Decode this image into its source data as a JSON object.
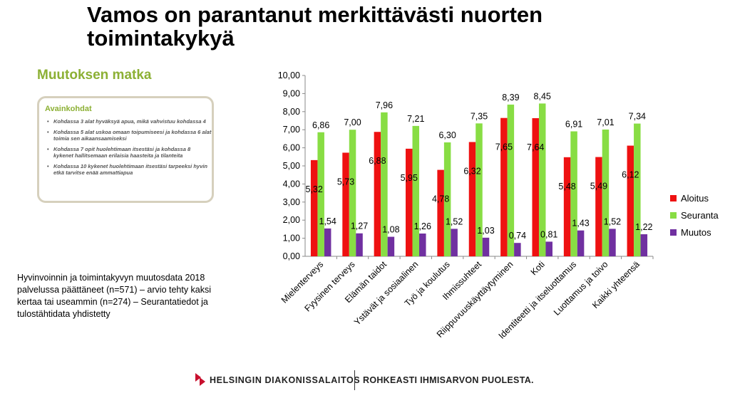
{
  "slide": {
    "title": "Vamos on parantanut merkittävästi nuorten toimintakykyä",
    "journey_title": "Muutoksen matka",
    "key_box": {
      "title": "Avainkohdat",
      "items": [
        "Kohdassa 3 alat hyväksyä apua, mikä vahvistuu kohdassa 4",
        "Kohdassa 5 alat uskoa omaan toipumiseesi ja kohdassa 6 alat toimia sen aikaansaamiseksi",
        "Kohdassa 7 opit huolehtimaan itsestäsi ja kohdassa 8 kykenet hallitsemaan erilaisia haasteita ja tilanteita",
        "Kohdassa 10 kykenet huolehtimaan itsestäsi tarpeeksi hyvin etkä tarvitse enää ammattiapua"
      ]
    },
    "source_text": "Hyvinvoinnin ja toimintakyvyn muutosdata 2018 palvelussa päättäneet (n=571) – arvio tehty kaksi kertaa tai useammin (n=274) – Seurantatiedot ja tulostähtidata yhdistetty",
    "footer": {
      "org": "HELSINGIN DIAKONISSALAITOS",
      "slogan": "ROHKEASTI IHMISARVON PUOLESTA."
    },
    "colors": {
      "aloitus": "#ee1111",
      "seuranta": "#88dd44",
      "muutos": "#7030a0",
      "accent": "#8cb034",
      "logo": "#c8102e"
    }
  },
  "chart_data": {
    "type": "bar",
    "title": "",
    "xlabel": "",
    "ylabel": "",
    "ylim": [
      0,
      10
    ],
    "yticks": [
      "0,00",
      "1,00",
      "2,00",
      "3,00",
      "4,00",
      "5,00",
      "6,00",
      "7,00",
      "8,00",
      "9,00",
      "10,00"
    ],
    "categories": [
      "Mielenterveys",
      "Fyysinen terveys",
      "Elämän taidot",
      "Ystävät ja sosiaalinen",
      "Työ ja koulutus",
      "Ihmissuhteet",
      "Riippuvuuskäyttäytyminen",
      "Koti",
      "Identiteetti ja itseluottamus",
      "Luottamus ja toivo",
      "Kaikki yhteensä"
    ],
    "series": [
      {
        "name": "Aloitus",
        "color": "#ee1111",
        "values": [
          5.32,
          5.73,
          6.88,
          5.95,
          4.78,
          6.32,
          7.65,
          7.64,
          5.48,
          5.49,
          6.12
        ],
        "labels": [
          "5,32",
          "5,73",
          "6,88",
          "5,95",
          "4,78",
          "6,32",
          "7,65",
          "7,64",
          "5,48",
          "5,49",
          "6,12"
        ]
      },
      {
        "name": "Seuranta",
        "color": "#88dd44",
        "values": [
          6.86,
          7.0,
          7.96,
          7.21,
          6.3,
          7.35,
          8.39,
          8.45,
          6.91,
          7.01,
          7.34
        ],
        "labels": [
          "6,86",
          "7,00",
          "7,96",
          "7,21",
          "6,30",
          "7,35",
          "8,39",
          "8,45",
          "6,91",
          "7,01",
          "7,34"
        ]
      },
      {
        "name": "Muutos",
        "color": "#7030a0",
        "values": [
          1.54,
          1.27,
          1.08,
          1.26,
          1.52,
          1.03,
          0.74,
          0.81,
          1.43,
          1.52,
          1.22
        ],
        "labels": [
          "1,54",
          "1,27",
          "1,08",
          "1,26",
          "1,52",
          "1,03",
          "0,74",
          "0,81",
          "1,43",
          "1,52",
          "1,22"
        ]
      }
    ],
    "grid": false,
    "legend_position": "right"
  }
}
